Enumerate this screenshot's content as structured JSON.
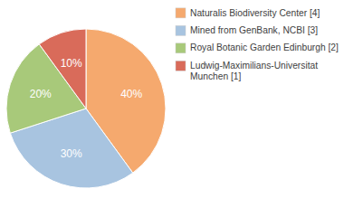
{
  "chart_data": {
    "type": "pie",
    "categories": [
      "Naturalis Biodiversity Center [4]",
      "Mined from GenBank, NCBI [3]",
      "Royal Botanic Garden Edinburgh [2]",
      "Ludwig-Maximilians-Universitat\nMunchen [1]"
    ],
    "values": [
      40,
      30,
      20,
      10
    ],
    "value_labels": [
      "40%",
      "30%",
      "20%",
      "10%"
    ],
    "colors": [
      "#f5a96e",
      "#a8c4e0",
      "#a8c97a",
      "#d96b5a"
    ],
    "data_labels": true,
    "legend": "right"
  }
}
